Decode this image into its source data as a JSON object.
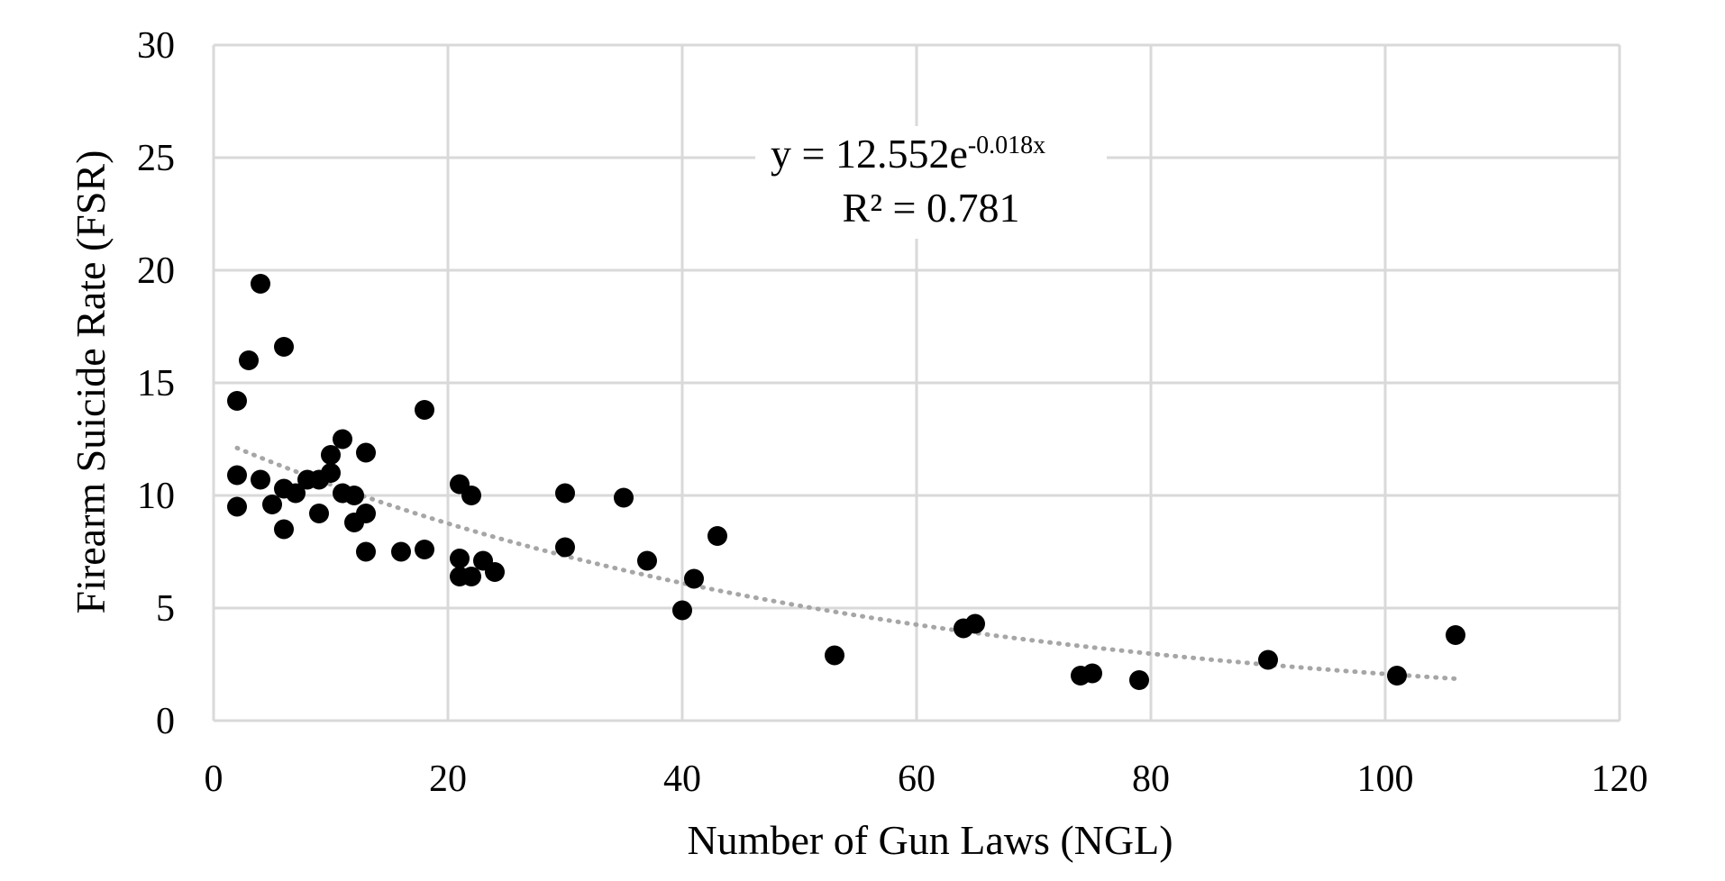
{
  "chart_data": {
    "type": "scatter",
    "xlabel": "Number of Gun Laws (NGL)",
    "ylabel": "Firearm Suicide Rate (FSR)",
    "xlim": [
      0,
      120
    ],
    "ylim": [
      0,
      30
    ],
    "x_ticks": [
      "0",
      "20",
      "40",
      "60",
      "80",
      "100",
      "120"
    ],
    "y_ticks": [
      "0",
      "5",
      "10",
      "15",
      "20",
      "25",
      "30"
    ],
    "grid": true,
    "colors": {
      "points": "#000000",
      "grid": "#d9d9d9",
      "trendline": "#a6a6a6"
    },
    "points": [
      [
        2,
        14.2
      ],
      [
        2,
        10.9
      ],
      [
        2,
        9.5
      ],
      [
        3,
        16.0
      ],
      [
        4,
        19.4
      ],
      [
        4,
        10.7
      ],
      [
        5,
        9.6
      ],
      [
        6,
        16.6
      ],
      [
        6,
        10.3
      ],
      [
        6,
        8.5
      ],
      [
        7,
        10.1
      ],
      [
        8,
        10.7
      ],
      [
        9,
        10.7
      ],
      [
        9,
        9.2
      ],
      [
        10,
        11.8
      ],
      [
        10,
        11.0
      ],
      [
        11,
        12.5
      ],
      [
        11,
        10.1
      ],
      [
        12,
        10.0
      ],
      [
        12,
        8.8
      ],
      [
        13,
        11.9
      ],
      [
        13,
        9.2
      ],
      [
        13,
        7.5
      ],
      [
        16,
        7.5
      ],
      [
        18,
        13.8
      ],
      [
        18,
        7.6
      ],
      [
        21,
        10.5
      ],
      [
        21,
        7.2
      ],
      [
        21,
        6.4
      ],
      [
        22,
        10.0
      ],
      [
        22,
        6.4
      ],
      [
        23,
        7.1
      ],
      [
        24,
        6.6
      ],
      [
        30,
        10.1
      ],
      [
        30,
        7.7
      ],
      [
        35,
        9.9
      ],
      [
        37,
        7.1
      ],
      [
        40,
        4.9
      ],
      [
        41,
        6.3
      ],
      [
        43,
        8.2
      ],
      [
        53,
        2.9
      ],
      [
        64,
        4.1
      ],
      [
        65,
        4.3
      ],
      [
        74,
        2.0
      ],
      [
        75,
        2.1
      ],
      [
        79,
        1.8
      ],
      [
        90,
        2.7
      ],
      [
        101,
        2.0
      ],
      [
        106,
        3.8
      ]
    ],
    "trendline": {
      "type": "exponential",
      "a": 12.552,
      "b": -0.018,
      "x_range": [
        2,
        106
      ],
      "equation_base": "y = 12.552e",
      "equation_exponent": "-0.018x",
      "r_squared_label": "R² = 0.781"
    }
  }
}
